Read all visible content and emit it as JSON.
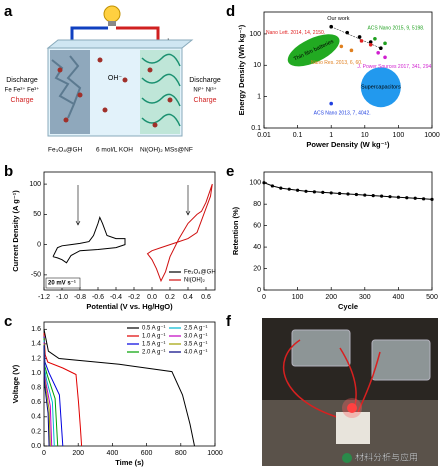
{
  "figure": {
    "labels": [
      "a",
      "b",
      "c",
      "d",
      "e",
      "f"
    ]
  },
  "schematic": {
    "minus": "−",
    "plus": "+",
    "discharge_left": "Discharge",
    "charge_left": "Charge",
    "fe_ions": "Fe  Fe²⁺ Fe³⁺",
    "oh": "OH⁻",
    "discharge_right": "Discharge",
    "charge_right": "Charge",
    "ni_ions": "Ni²⁺  Ni³⁺",
    "anode": "Fe₃O₄@GH",
    "electrolyte": "6 mol/L KOH",
    "cathode": "Ni(OH)₂ MSs@NF"
  },
  "watermark": "材料分析与应用",
  "chart_data": [
    {
      "type": "line",
      "xlabel": "Potential (V vs. Hg/HgO)",
      "ylabel": "Current Density (A g⁻¹)",
      "xlim": [
        -1.2,
        0.7
      ],
      "xticks": [
        -1.2,
        {
          "value": -1,
          "label": "-1.0"
        },
        -0.8,
        -0.6,
        -0.4,
        -0.2,
        {
          "value": 0,
          "label": "0.0"
        },
        0.2,
        0.4,
        0.6
      ],
      "ylim": [
        -75,
        120
      ],
      "yticks": [
        -50,
        0,
        50,
        100
      ],
      "legend": "lower right",
      "annotation": "20 mV s⁻¹",
      "series": [
        {
          "name": "Fe₃O₄@GH",
          "color": "#000000",
          "x": [
            -1.1,
            -1.05,
            -1.0,
            -0.9,
            -0.8,
            -0.7,
            -0.65,
            -0.6,
            -0.58,
            -0.55,
            -0.5,
            -0.4,
            -0.3,
            -0.3,
            -0.4,
            -0.6,
            -0.8,
            -0.9,
            -0.95,
            -1.0,
            -1.05,
            -1.1
          ],
          "values": [
            -20,
            -5,
            -2,
            0,
            2,
            5,
            15,
            35,
            45,
            35,
            15,
            10,
            10,
            0,
            -5,
            -8,
            -10,
            -18,
            -30,
            -25,
            -22,
            -20
          ]
        },
        {
          "name": "Ni(OH)₂",
          "color": "#d01010",
          "x": [
            0.0,
            0.1,
            0.2,
            0.3,
            0.4,
            0.5,
            0.55,
            0.6,
            0.65,
            0.67,
            0.6,
            0.55,
            0.5,
            0.4,
            0.3,
            0.2,
            0.15,
            0.1,
            0.05,
            0.0,
            -0.05,
            0.0
          ],
          "values": [
            -10,
            -5,
            0,
            5,
            10,
            20,
            40,
            60,
            80,
            100,
            70,
            55,
            50,
            35,
            10,
            -20,
            -45,
            -60,
            -40,
            -25,
            -15,
            -10
          ]
        }
      ]
    },
    {
      "type": "line",
      "xlabel": "Time (s)",
      "ylabel": "Voltage (V)",
      "xlim": [
        0,
        1000
      ],
      "xticks": [
        0,
        200,
        400,
        600,
        800,
        1000
      ],
      "ylim": [
        0,
        1.7
      ],
      "yticks": [
        {
          "value": 0,
          "label": "0.0"
        },
        0.2,
        0.4,
        0.6,
        0.8,
        {
          "value": 1,
          "label": "1.0"
        },
        1.2,
        1.4,
        1.6
      ],
      "legend": "upper right",
      "series": [
        {
          "name": "0.5 A g⁻¹",
          "color": "#000000",
          "x": [
            0,
            26,
            88,
            440,
            748,
            810,
            854,
            880
          ],
          "values": [
            1.6,
            1.3,
            1.2,
            1.12,
            1.02,
            0.7,
            0.3,
            0
          ]
        },
        {
          "name": "1.0 A g⁻¹",
          "color": "#e00000",
          "x": [
            0,
            7,
            22,
            110,
            187,
            202,
            213,
            220
          ],
          "values": [
            1.55,
            1.25,
            1.15,
            1.07,
            0.98,
            0.6,
            0.25,
            0
          ]
        },
        {
          "name": "1.5 A g⁻¹",
          "color": "#0000e0",
          "x": [
            0,
            5,
            30,
            90,
            110
          ],
          "values": [
            1.5,
            1.15,
            1.0,
            0.7,
            0
          ]
        },
        {
          "name": "2.0 A g⁻¹",
          "color": "#00a000",
          "x": [
            0,
            4,
            22,
            65,
            80
          ],
          "values": [
            1.48,
            1.1,
            0.95,
            0.65,
            0
          ]
        },
        {
          "name": "2.5 A g⁻¹",
          "color": "#00b8d0",
          "x": [
            0,
            3,
            16,
            49,
            60
          ],
          "values": [
            1.45,
            1.05,
            0.9,
            0.6,
            0
          ]
        },
        {
          "name": "3.0 A g⁻¹",
          "color": "#c000c0",
          "x": [
            0,
            2,
            12,
            37,
            45
          ],
          "values": [
            1.42,
            1.0,
            0.85,
            0.55,
            0
          ]
        },
        {
          "name": "3.5 A g⁻¹",
          "color": "#a0a000",
          "x": [
            0,
            2,
            10,
            30,
            37
          ],
          "values": [
            1.4,
            0.95,
            0.8,
            0.5,
            0
          ]
        },
        {
          "name": "4.0 A g⁻¹",
          "color": "#000080",
          "x": [
            0,
            2,
            8,
            24,
            30
          ],
          "values": [
            1.38,
            0.9,
            0.75,
            0.45,
            0
          ]
        }
      ]
    },
    {
      "type": "scatter",
      "xlabel": "Power Density (W kg⁻¹)",
      "ylabel": "Energy Density (Wh kg⁻¹)",
      "xlog": true,
      "ylog": true,
      "xlim": [
        0.01,
        1000
      ],
      "xticks": [
        0.01,
        0.1,
        1,
        10,
        100,
        1000
      ],
      "ylim": [
        0.1,
        500
      ],
      "yticks": [
        0.1,
        1,
        10,
        100
      ],
      "regions": [
        {
          "name": "Thin film batteries",
          "color": "#22aa22"
        },
        {
          "name": "Supercapacitors",
          "color": "#2299ee"
        }
      ],
      "series": [
        {
          "name": "Our work",
          "color": "#000000",
          "x": [
            1,
            3,
            7,
            15,
            30
          ],
          "values": [
            170,
            110,
            80,
            55,
            35
          ]
        },
        {
          "name": "Nano Lett. 2014, 14, 2150.",
          "color": "#e02020",
          "x": [
            8,
            15
          ],
          "values": [
            60,
            45
          ]
        },
        {
          "name": "ACS Nano 2015, 9, 5198.",
          "color": "#20a020",
          "x": [
            20,
            40
          ],
          "values": [
            70,
            50
          ]
        },
        {
          "name": "J. Power Sources 2017, 341, 294",
          "color": "#d020d0",
          "x": [
            25,
            40
          ],
          "values": [
            25,
            18
          ]
        },
        {
          "name": "Nano Res. 2013, 6, 60.",
          "color": "#e08020",
          "x": [
            2,
            4
          ],
          "values": [
            40,
            30
          ]
        },
        {
          "name": "ACS Nano 2013, 7, 4042.",
          "color": "#2040e0",
          "x": [
            1
          ],
          "values": [
            0.6
          ]
        }
      ]
    },
    {
      "type": "line",
      "xlabel": "Cycle",
      "ylabel": "Retention (%)",
      "markers": true,
      "xlim": [
        0,
        500
      ],
      "xticks": [
        0,
        100,
        200,
        300,
        400,
        500
      ],
      "ylim": [
        0,
        110
      ],
      "yticks": [
        0,
        20,
        40,
        60,
        80,
        100
      ],
      "series": [
        {
          "name": "Retention",
          "color": "#000000",
          "x": [
            0,
            25,
            50,
            75,
            100,
            125,
            150,
            175,
            200,
            225,
            250,
            275,
            300,
            325,
            350,
            375,
            400,
            425,
            450,
            475,
            500
          ],
          "values": [
            100,
            97,
            95,
            94,
            93,
            92,
            91.5,
            91,
            90.5,
            90,
            89.5,
            89,
            88.5,
            88,
            87.5,
            87,
            86.5,
            86,
            85.5,
            85,
            84.5
          ]
        }
      ]
    }
  ]
}
